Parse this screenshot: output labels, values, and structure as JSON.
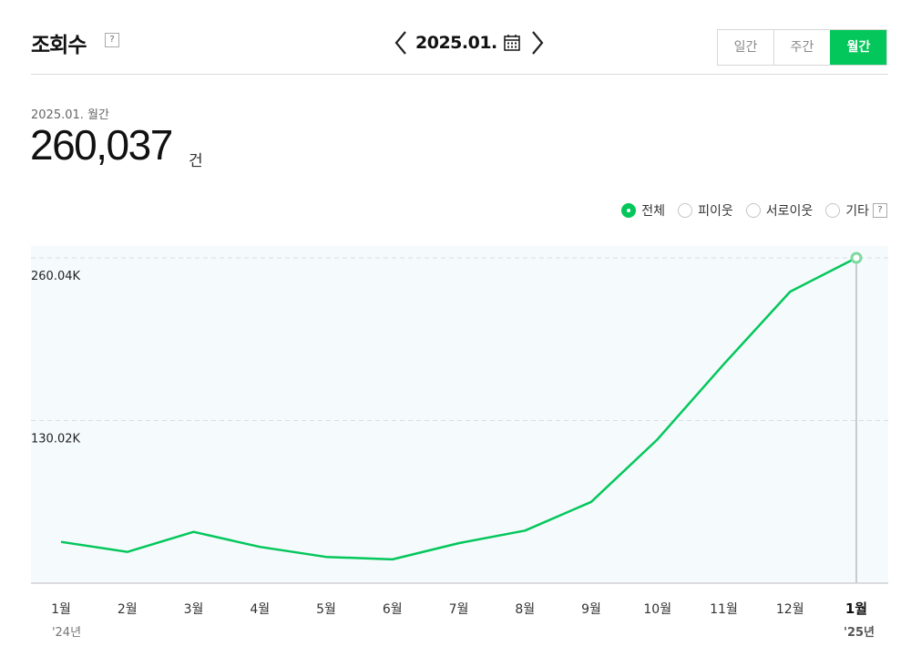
{
  "header": {
    "title": "조회수",
    "help": "?",
    "date": "2025.01.",
    "periods": [
      {
        "label": "일간",
        "active": false
      },
      {
        "label": "주간",
        "active": false
      },
      {
        "label": "월간",
        "active": true
      }
    ]
  },
  "summary": {
    "period_label": "2025.01. 월간",
    "total": "260,037",
    "unit": "건"
  },
  "legend": [
    {
      "label": "전체",
      "selected": true
    },
    {
      "label": "피이웃",
      "selected": false
    },
    {
      "label": "서로이웃",
      "selected": false
    },
    {
      "label": "기타",
      "selected": false,
      "help": "?"
    }
  ],
  "colors": {
    "accent": "#03c75a",
    "plot_bg": "#f5fafd",
    "grid": "#d9dee3"
  },
  "chart_data": {
    "type": "line",
    "categories": [
      "1월",
      "2월",
      "3월",
      "4월",
      "5월",
      "6월",
      "7월",
      "8월",
      "9월",
      "10월",
      "11월",
      "12월",
      "1월"
    ],
    "year_labels": [
      {
        "index": 0,
        "label": "'24년"
      },
      {
        "index": 12,
        "label": "'25년"
      }
    ],
    "series": [
      {
        "values": [
          33000,
          25000,
          41000,
          29000,
          21000,
          19000,
          32000,
          42000,
          65000,
          115000,
          175000,
          233000,
          260037
        ]
      }
    ],
    "ylim": [
      0,
      280000
    ],
    "yticks": [
      {
        "value": 130018,
        "label": "130.02K"
      },
      {
        "value": 260037,
        "label": "260.04K"
      }
    ],
    "highlight_index": 12,
    "grid": true
  }
}
